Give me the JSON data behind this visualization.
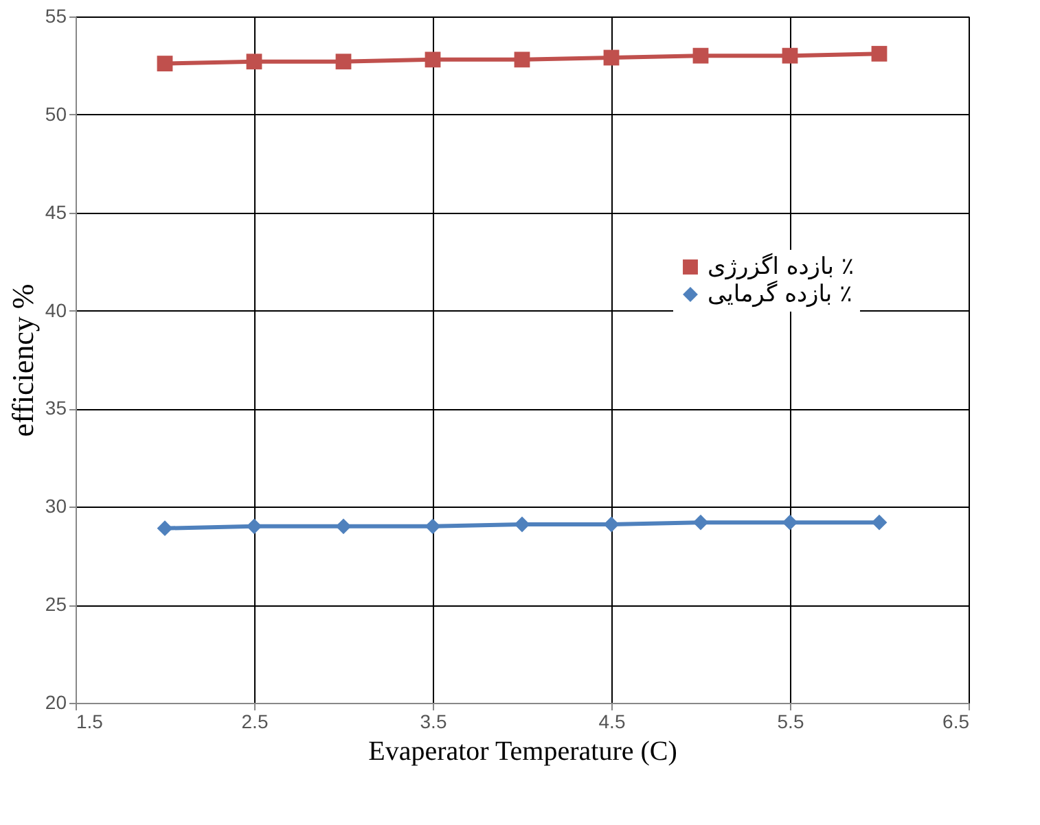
{
  "chart_data": {
    "type": "line",
    "xlabel": "Evaperator Temperature (C)",
    "ylabel": "efficiency %",
    "x": [
      2,
      2.5,
      3,
      3.5,
      4,
      4.5,
      5,
      5.5,
      6
    ],
    "series": [
      {
        "name": "بازده اگزرژی ٪",
        "color": "#c0504d",
        "marker": "square",
        "values": [
          52.6,
          52.7,
          52.7,
          52.8,
          52.8,
          52.9,
          53.0,
          53.0,
          53.1
        ]
      },
      {
        "name": "بازده گرمایی ٪",
        "color": "#4f81bd",
        "marker": "diamond",
        "values": [
          28.9,
          29.0,
          29.0,
          29.0,
          29.1,
          29.1,
          29.2,
          29.2,
          29.2
        ]
      }
    ],
    "xlim": [
      1.5,
      6.5
    ],
    "xticks": [
      1.5,
      2.5,
      3.5,
      4.5,
      5.5,
      6.5
    ],
    "ylim": [
      20,
      55
    ],
    "yticks": [
      20,
      25,
      30,
      35,
      40,
      45,
      50,
      55
    ],
    "grid": true,
    "legend": "right",
    "line_style": "solid"
  }
}
